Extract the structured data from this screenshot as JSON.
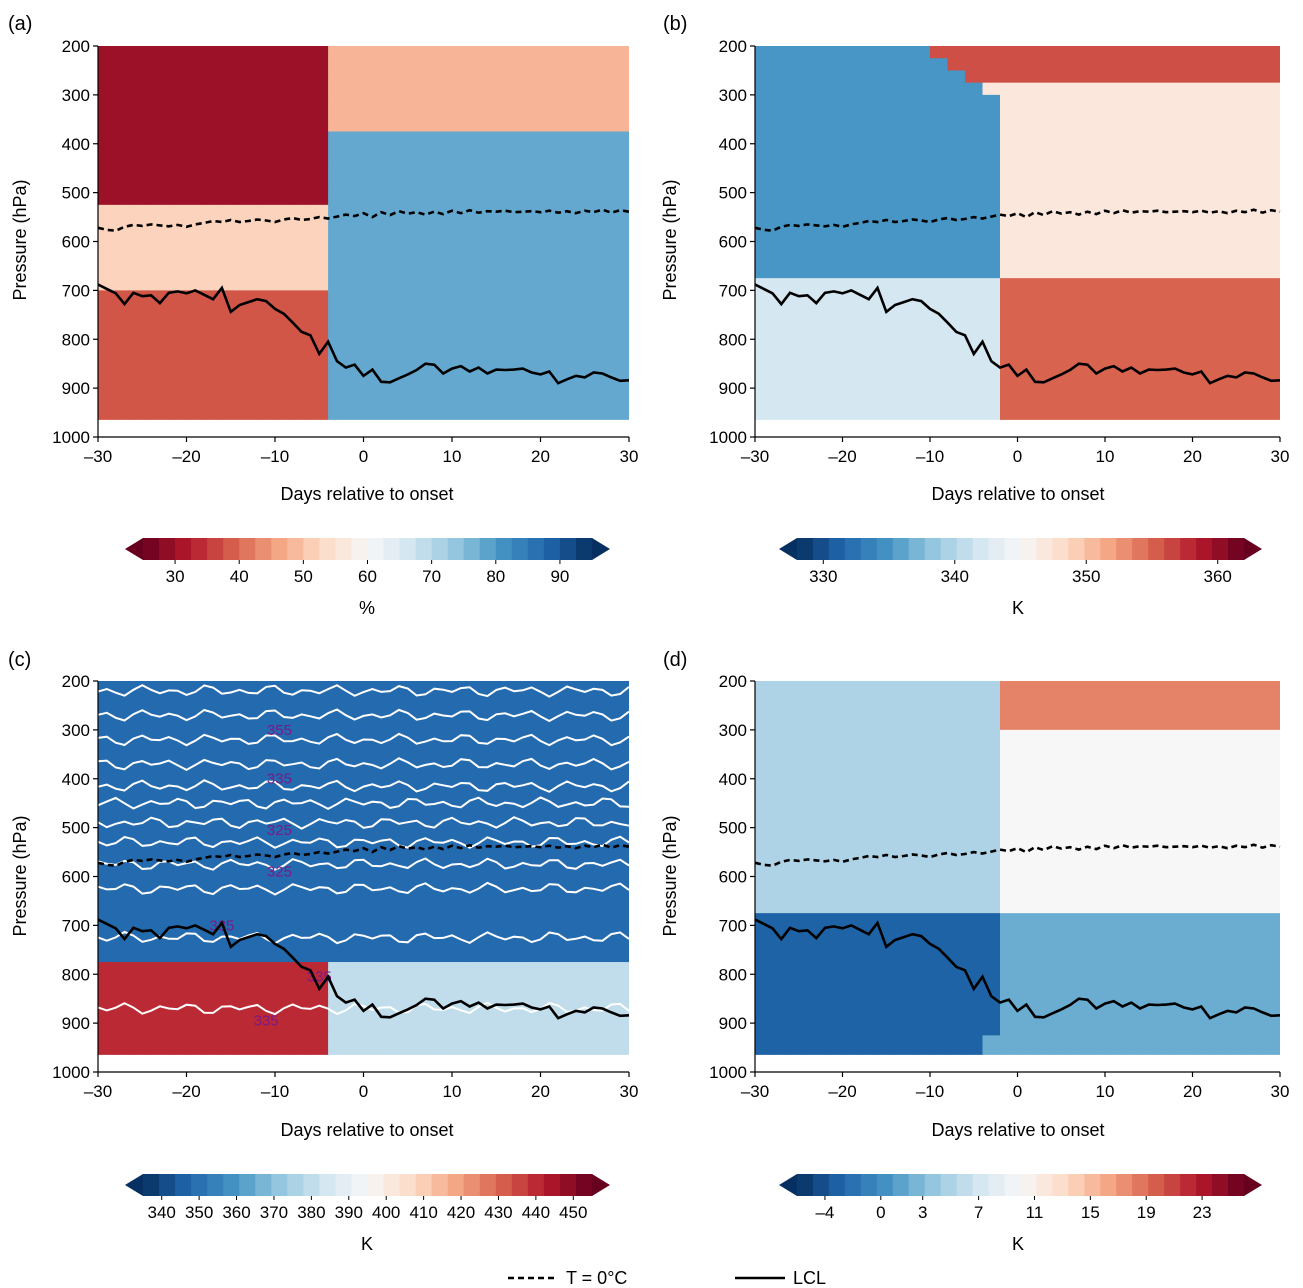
{
  "legend": {
    "dashed_label": "T = 0°C",
    "solid_label": "LCL"
  },
  "chart_data": [
    {
      "type": "heatmap",
      "panel_label": "(a)",
      "xlabel": "Days relative to onset",
      "ylabel": "Pressure (hPa)",
      "xlim": [
        -30,
        30
      ],
      "ylim": [
        1000,
        200
      ],
      "xticks": [
        -30,
        -20,
        -10,
        0,
        10,
        20,
        30
      ],
      "xticklabels": [
        "–30",
        "–20",
        "–10",
        "0",
        "10",
        "20",
        "30"
      ],
      "yticks": [
        200,
        300,
        400,
        500,
        600,
        700,
        800,
        900,
        1000
      ],
      "colormap": "RdBu",
      "colorbar": {
        "min": 25,
        "max": 95,
        "ticks": [
          30,
          40,
          50,
          60,
          70,
          80,
          90
        ],
        "ticklabels": [
          "30",
          "40",
          "50",
          "60",
          "70",
          "80",
          "90"
        ],
        "label": "%",
        "extend": "both"
      },
      "description_regions": [
        {
          "days": [
            -30,
            -5
          ],
          "pressure": [
            200,
            500
          ],
          "value": 30
        },
        {
          "days": [
            -30,
            -5
          ],
          "pressure": [
            550,
            700
          ],
          "value": 52
        },
        {
          "days": [
            -30,
            -5
          ],
          "pressure": [
            700,
            965
          ],
          "value": 38
        },
        {
          "days": [
            -3,
            30
          ],
          "pressure": [
            200,
            350
          ],
          "value": 48
        },
        {
          "days": [
            -3,
            30
          ],
          "pressure": [
            400,
            965
          ],
          "value": 78
        }
      ]
    },
    {
      "type": "heatmap",
      "panel_label": "(b)",
      "xlabel": "Days relative to onset",
      "ylabel": "Pressure (hPa)",
      "xlim": [
        -30,
        30
      ],
      "ylim": [
        1000,
        200
      ],
      "xticks": [
        -30,
        -20,
        -10,
        0,
        10,
        20,
        30
      ],
      "xticklabels": [
        "–30",
        "–20",
        "–10",
        "0",
        "10",
        "20",
        "30"
      ],
      "yticks": [
        200,
        300,
        400,
        500,
        600,
        700,
        800,
        900,
        1000
      ],
      "colormap": "RdBu_r",
      "colorbar": {
        "min": 328,
        "max": 362,
        "ticks": [
          330,
          340,
          350,
          360
        ],
        "ticklabels": [
          "330",
          "340",
          "350",
          "360"
        ],
        "label": "K",
        "extend": "both"
      },
      "description_regions": [
        {
          "days": [
            -30,
            -3
          ],
          "pressure": [
            350,
            650
          ],
          "value": 335
        },
        {
          "days": [
            -30,
            -3
          ],
          "pressure": [
            700,
            965
          ],
          "value": 342
        },
        {
          "days": [
            0,
            30
          ],
          "pressure": [
            200,
            250
          ],
          "value": 356
        },
        {
          "days": [
            0,
            30
          ],
          "pressure": [
            300,
            650
          ],
          "value": 347
        },
        {
          "days": [
            -5,
            30
          ],
          "pressure": [
            700,
            965
          ],
          "value": 355
        }
      ]
    },
    {
      "type": "heatmap",
      "panel_label": "(c)",
      "xlabel": "Days relative to onset",
      "ylabel": "Pressure (hPa)",
      "xlim": [
        -30,
        30
      ],
      "ylim": [
        1000,
        200
      ],
      "xticks": [
        -30,
        -20,
        -10,
        0,
        10,
        20,
        30
      ],
      "xticklabels": [
        "–30",
        "–20",
        "–10",
        "0",
        "10",
        "20",
        "30"
      ],
      "yticks": [
        200,
        300,
        400,
        500,
        600,
        700,
        800,
        900,
        1000
      ],
      "colormap": "RdBu_r",
      "colorbar": {
        "min": 335,
        "max": 455,
        "ticks": [
          340,
          350,
          360,
          370,
          380,
          390,
          400,
          410,
          420,
          430,
          440,
          450
        ],
        "ticklabels": [
          "340",
          "350",
          "360",
          "370",
          "380",
          "390",
          "400",
          "410",
          "420",
          "430",
          "440",
          "450"
        ],
        "label": "K",
        "extend": "both"
      },
      "contour_pressures": [
        220,
        270,
        320,
        370,
        415,
        450,
        490,
        530,
        575,
        625,
        725,
        870
      ],
      "contour_labels": [
        {
          "text": "355",
          "day": -9.5,
          "p": 310
        },
        {
          "text": "335",
          "day": -9.5,
          "p": 410
        },
        {
          "text": "325",
          "day": -9.5,
          "p": 515
        },
        {
          "text": "325",
          "day": -9.5,
          "p": 600
        },
        {
          "text": "335",
          "day": -16,
          "p": 710
        },
        {
          "text": "335",
          "day": -5,
          "p": 815
        },
        {
          "text": "335",
          "day": -11,
          "p": 905
        }
      ],
      "description_regions": [
        {
          "days": [
            -30,
            30
          ],
          "pressure": [
            200,
            700
          ],
          "value": 348
        },
        {
          "days": [
            -30,
            -5
          ],
          "pressure": [
            850,
            965
          ],
          "value": 440
        },
        {
          "days": [
            -3,
            30
          ],
          "pressure": [
            850,
            965
          ],
          "value": 380
        }
      ]
    },
    {
      "type": "heatmap",
      "panel_label": "(d)",
      "xlabel": "Days relative to onset",
      "ylabel": "Pressure (hPa)",
      "xlim": [
        -30,
        30
      ],
      "ylim": [
        1000,
        200
      ],
      "xticks": [
        -30,
        -20,
        -10,
        0,
        10,
        20,
        30
      ],
      "xticklabels": [
        "–30",
        "–20",
        "–10",
        "0",
        "10",
        "20",
        "30"
      ],
      "yticks": [
        200,
        300,
        400,
        500,
        600,
        700,
        800,
        900,
        1000
      ],
      "colormap": "RdBu_r",
      "colorbar": {
        "min": -6,
        "max": 26,
        "ticks": [
          -4,
          0,
          3,
          7,
          11,
          15,
          19,
          23
        ],
        "ticklabels": [
          "–4",
          "0",
          "3",
          "7",
          "11",
          "15",
          "19",
          "23"
        ],
        "label": "K",
        "extend": "both"
      },
      "description_regions": [
        {
          "days": [
            -30,
            -5
          ],
          "pressure": [
            200,
            650
          ],
          "value": 5
        },
        {
          "days": [
            -30,
            -5
          ],
          "pressure": [
            700,
            900
          ],
          "value": -3
        },
        {
          "days": [
            0,
            30
          ],
          "pressure": [
            200,
            300
          ],
          "value": 18
        },
        {
          "days": [
            0,
            30
          ],
          "pressure": [
            300,
            650
          ],
          "value": 10
        },
        {
          "days": [
            0,
            30
          ],
          "pressure": [
            700,
            965
          ],
          "value": 2
        }
      ]
    }
  ],
  "freezing_level": {
    "days": [
      -30,
      -29,
      -28,
      -27,
      -26,
      -25,
      -24,
      -23,
      -22,
      -21,
      -20,
      -19,
      -18,
      -17,
      -16,
      -15,
      -14,
      -13,
      -12,
      -11,
      -10,
      -9,
      -8,
      -7,
      -6,
      -5,
      -4,
      -3,
      -2,
      -1,
      0,
      1,
      2,
      3,
      4,
      5,
      6,
      7,
      8,
      9,
      10,
      11,
      12,
      13,
      14,
      15,
      16,
      17,
      18,
      19,
      20,
      21,
      22,
      23,
      24,
      25,
      26,
      27,
      28,
      29,
      30
    ],
    "pressure": [
      572,
      576,
      578,
      570,
      566,
      568,
      565,
      567,
      569,
      566,
      570,
      565,
      562,
      558,
      560,
      556,
      560,
      558,
      555,
      557,
      560,
      555,
      552,
      556,
      554,
      550,
      553,
      549,
      545,
      548,
      542,
      550,
      540,
      546,
      538,
      543,
      540,
      545,
      539,
      544,
      537,
      542,
      536,
      541,
      538,
      539,
      537,
      540,
      539,
      538,
      540,
      537,
      541,
      538,
      542,
      537,
      540,
      535,
      541,
      536,
      539
    ]
  },
  "lcl": {
    "days": [
      -30,
      -29,
      -28,
      -27,
      -26,
      -25,
      -24,
      -23,
      -22,
      -21,
      -20,
      -19,
      -18,
      -17,
      -16,
      -15,
      -14,
      -13,
      -12,
      -11,
      -10,
      -9,
      -8,
      -7,
      -6,
      -5,
      -4,
      -3,
      -2,
      -1,
      0,
      1,
      2,
      3,
      4,
      5,
      6,
      7,
      8,
      9,
      10,
      11,
      12,
      13,
      14,
      15,
      16,
      17,
      18,
      19,
      20,
      21,
      22,
      23,
      24,
      25,
      26,
      27,
      28,
      29,
      30
    ],
    "pressure": [
      688,
      697,
      706,
      728,
      705,
      712,
      710,
      726,
      705,
      702,
      706,
      700,
      709,
      718,
      695,
      744,
      730,
      724,
      718,
      722,
      738,
      748,
      766,
      785,
      792,
      830,
      805,
      845,
      858,
      852,
      875,
      862,
      887,
      888,
      880,
      872,
      863,
      850,
      852,
      870,
      860,
      855,
      866,
      858,
      870,
      862,
      863,
      862,
      860,
      868,
      872,
      866,
      890,
      882,
      875,
      878,
      868,
      870,
      878,
      885,
      884
    ]
  }
}
